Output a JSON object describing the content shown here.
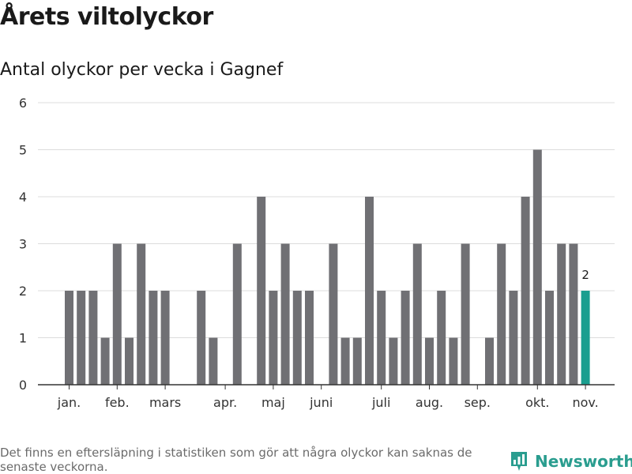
{
  "chart_data": {
    "type": "bar",
    "title": "Årets viltolyckor",
    "subtitle": "Antal olyckor per vecka i Gagnef",
    "weeks": [
      1,
      2,
      3,
      4,
      5,
      6,
      7,
      8,
      9,
      10,
      11,
      12,
      13,
      14,
      15,
      16,
      17,
      18,
      19,
      20,
      21,
      22,
      23,
      24,
      25,
      26,
      27,
      28,
      29,
      30,
      31,
      32,
      33,
      34,
      35,
      36,
      37,
      38,
      39,
      40,
      41,
      42,
      43,
      44,
      45,
      46
    ],
    "values": [
      2,
      2,
      2,
      1,
      3,
      1,
      3,
      2,
      2,
      0,
      0,
      2,
      1,
      0,
      3,
      0,
      4,
      2,
      3,
      2,
      2,
      0,
      3,
      1,
      1,
      4,
      2,
      1,
      2,
      3,
      1,
      2,
      1,
      3,
      0,
      1,
      3,
      2,
      4,
      5,
      2,
      3,
      3,
      2,
      0,
      0
    ],
    "ylim": [
      0,
      6
    ],
    "yticks": [
      0,
      1,
      2,
      3,
      4,
      5,
      6
    ],
    "month_labels": [
      {
        "label": "jan.",
        "week": 1
      },
      {
        "label": "feb.",
        "week": 5
      },
      {
        "label": "mars",
        "week": 9
      },
      {
        "label": "apr.",
        "week": 14
      },
      {
        "label": "maj",
        "week": 18
      },
      {
        "label": "juni",
        "week": 22
      },
      {
        "label": "juli",
        "week": 27
      },
      {
        "label": "aug.",
        "week": 31
      },
      {
        "label": "sep.",
        "week": 35
      },
      {
        "label": "okt.",
        "week": 40
      },
      {
        "label": "nov.",
        "week": 44
      }
    ],
    "highlight_week": 44,
    "highlight_label": "2",
    "grid": true,
    "colors": {
      "bar": "#707074",
      "highlight": "#1a9e8f",
      "grid": "#dcdcdc",
      "axis": "#333333"
    }
  },
  "footnote": "Det finns en eftersläpning i statistiken som gör att några olyckor kan saknas de senaste veckorna.",
  "brand": {
    "name": "Newsworthy",
    "icon": "newsworthy-logo-icon",
    "color": "#2a9d8f"
  }
}
